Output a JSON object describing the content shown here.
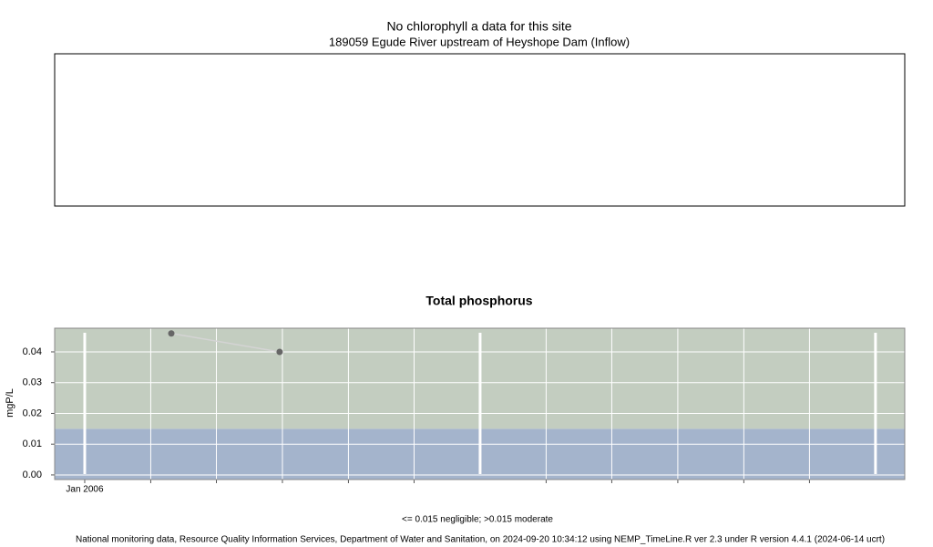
{
  "chart_data": [
    {
      "type": "empty",
      "title": "No chlorophyll a data for this site",
      "subtitle": "189059 Egude River upstream of Heyshope Dam (Inflow)"
    },
    {
      "type": "line",
      "title": "Total phosphorus",
      "ylabel": "mgP/L",
      "x": [
        2006.219,
        2006.493
      ],
      "values": [
        0.046,
        0.04
      ],
      "line_color": "#d4d4d4",
      "point_color": "#666666",
      "xlim": [
        2005.924,
        2008.074
      ],
      "xticks": [
        {
          "value": 2006,
          "label": "Jan 2006"
        }
      ],
      "xgrid_major": [
        2006,
        2007,
        2008
      ],
      "xgrid_minor": [
        2006.167,
        2006.333,
        2006.5,
        2006.667,
        2006.833,
        2007.167,
        2007.333,
        2007.5,
        2007.667,
        2007.833
      ],
      "ylim": [
        -0.0015,
        0.0477
      ],
      "yticks": [
        {
          "value": 0,
          "label": "0.00"
        },
        {
          "value": 0.01,
          "label": "0.01"
        },
        {
          "value": 0.02,
          "label": "0.02"
        },
        {
          "value": 0.03,
          "label": "0.03"
        },
        {
          "value": 0.04,
          "label": "0.04"
        }
      ],
      "thresholds": [
        0.015
      ],
      "band_colors": [
        "#a4b4cc",
        "#c3cdc0"
      ],
      "note": "<= 0.015 negligible; >0.015 moderate",
      "footer": "National monitoring data, Resource Quality Information Services, Department of Water and Sanitation, on 2024-09-20 10:34:12 using NEMP_TimeLine.R ver 2.3 under R version 4.4.1 (2024-06-14 ucrt)"
    }
  ]
}
